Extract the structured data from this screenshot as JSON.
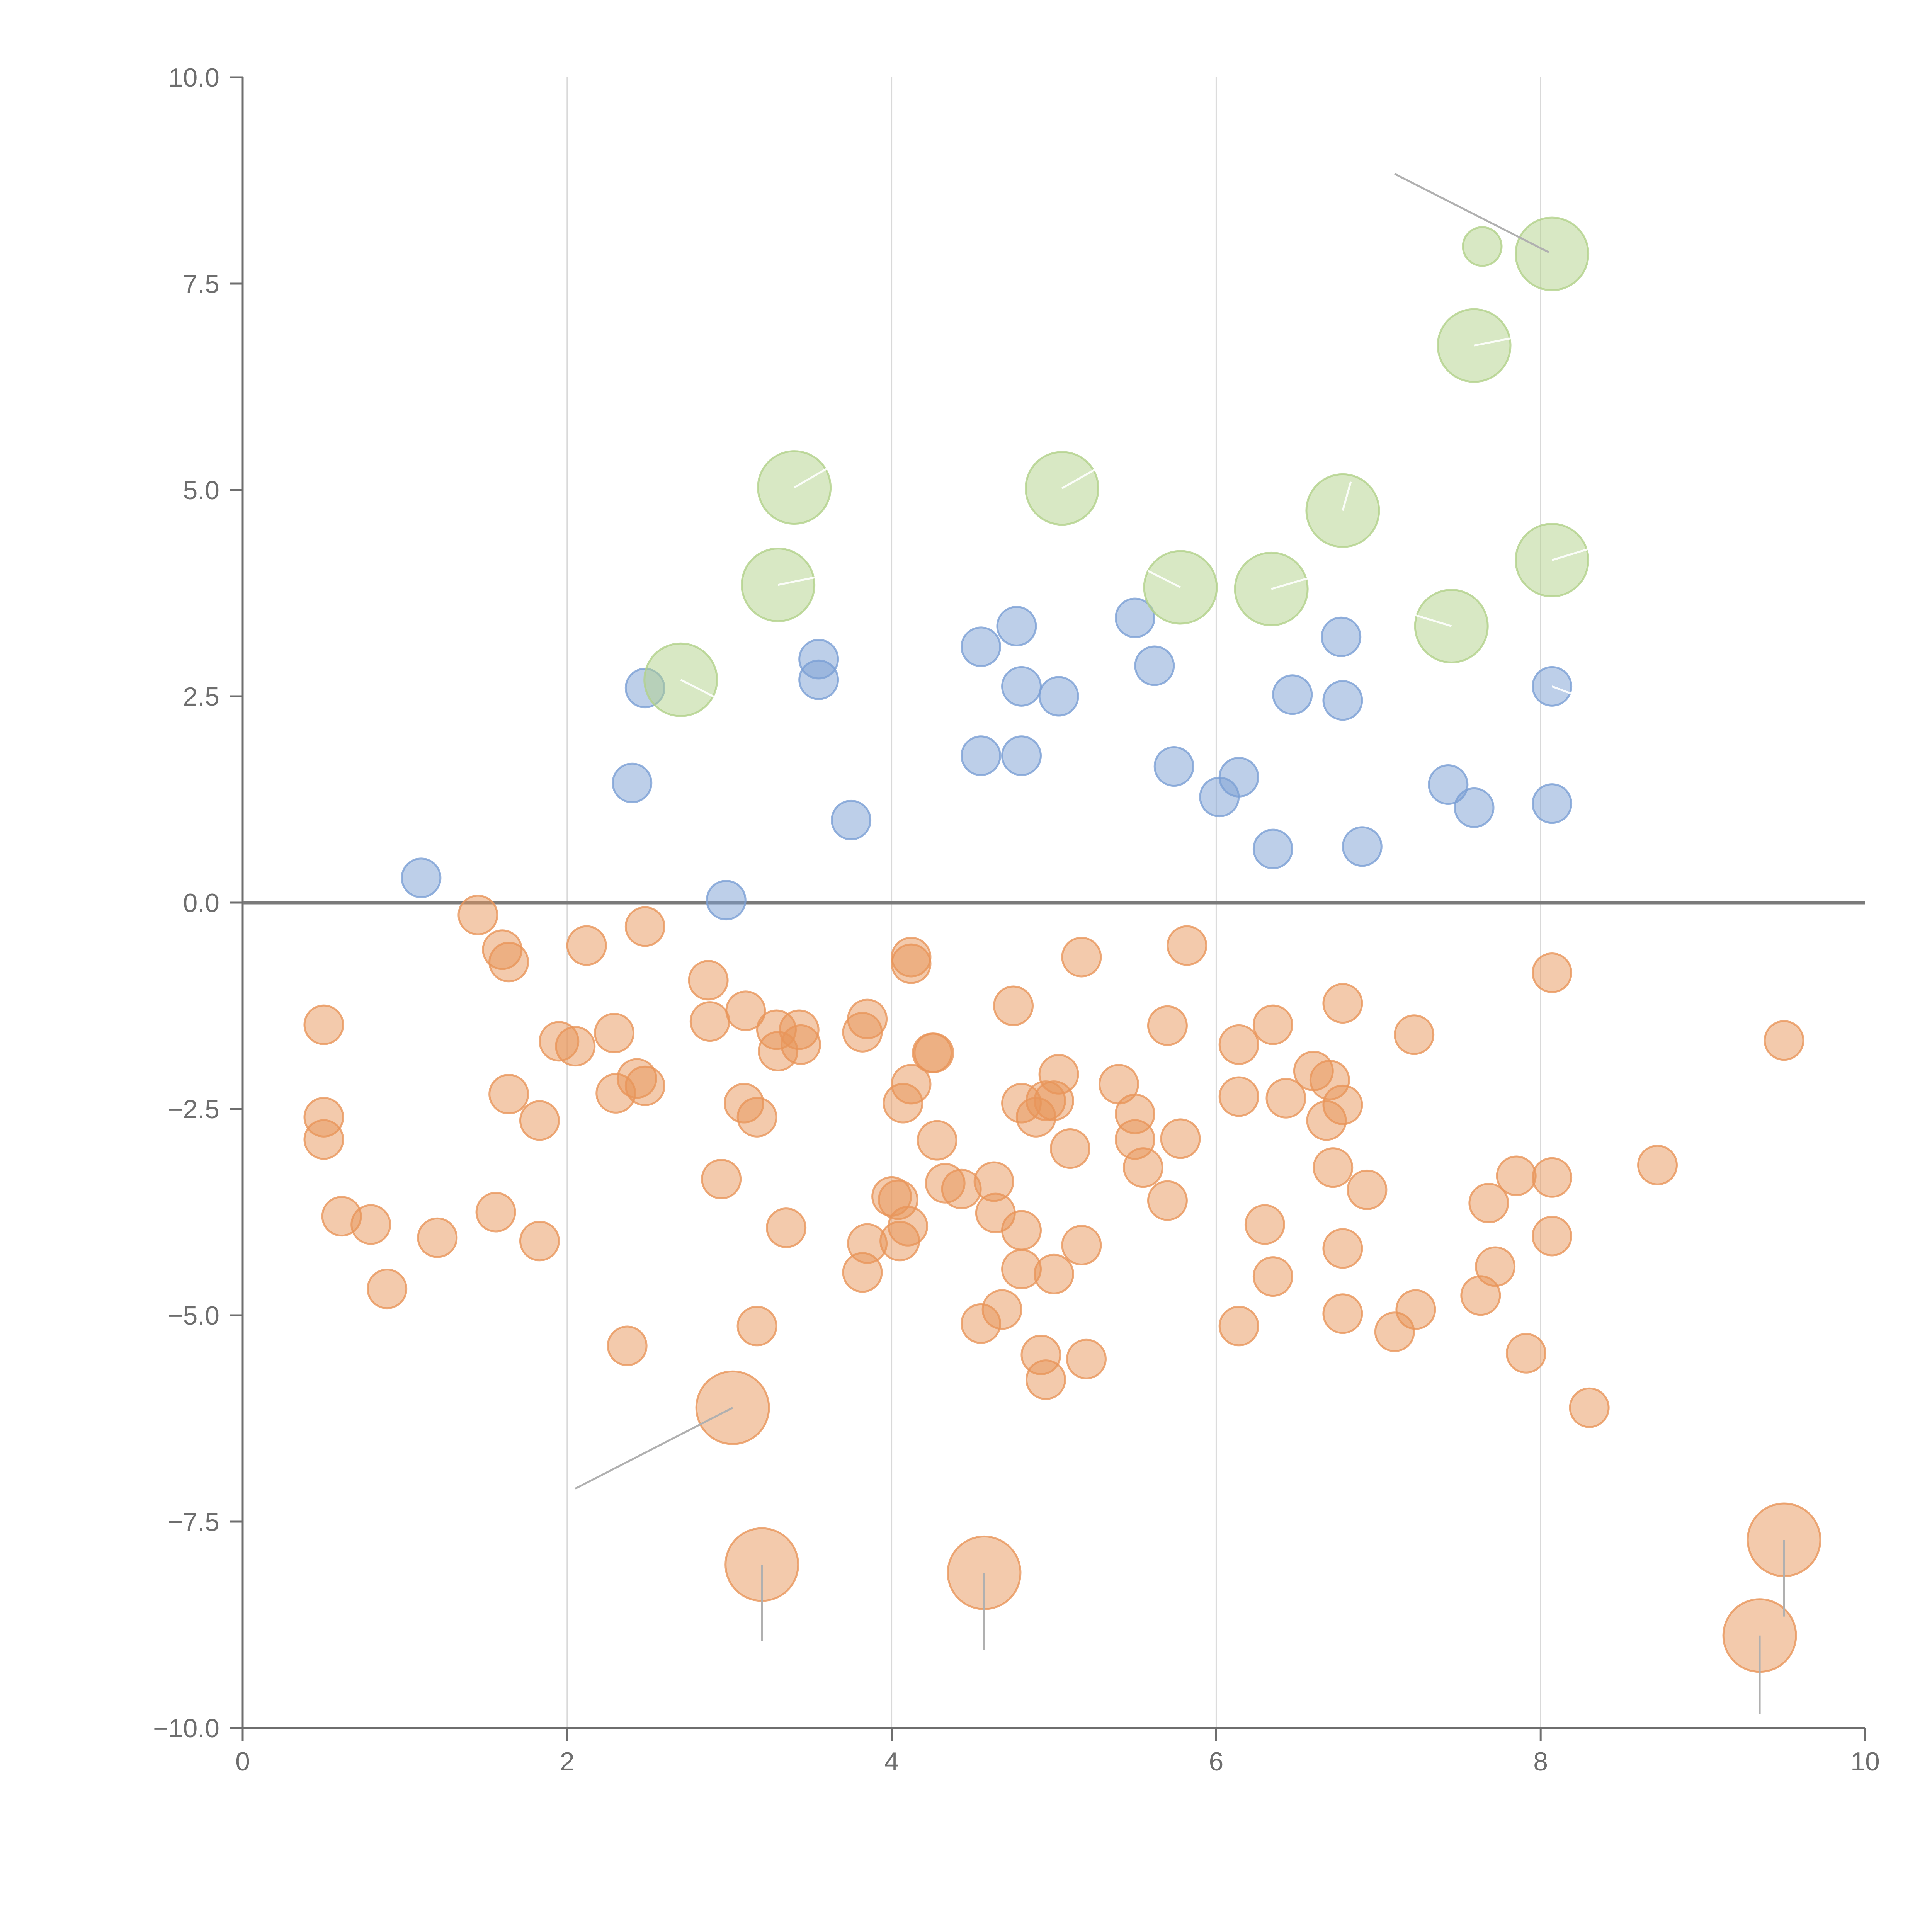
{
  "chart_data": {
    "type": "scatter",
    "title": "",
    "xlabel": "",
    "ylabel": "",
    "xlim": [
      0,
      10
    ],
    "ylim": [
      -10,
      10
    ],
    "x_ticks": [
      0,
      2,
      4,
      6,
      8,
      10
    ],
    "y_ticks": [
      -10,
      -7.5,
      -5,
      -2.5,
      0,
      2.5,
      5,
      7.5,
      10
    ],
    "x_tick_labels": [
      "0",
      "2",
      "4",
      "6",
      "8",
      "10"
    ],
    "y_tick_labels": [
      "−10.0",
      "−7.5",
      "−5.0",
      "−2.5",
      "0.0",
      "2.5",
      "5.0",
      "7.5",
      "10.0"
    ],
    "x_grid": true,
    "y_grid": false,
    "zero_line": 0,
    "colors": {
      "blue": "#7b9fd4",
      "orange": "#e8955a",
      "green": "#b1d18a",
      "axis": "#6e6e6e",
      "grid": "#d9d9d9",
      "zero_line": "#7a7a7a",
      "annotation_line": "#b0b0b0"
    },
    "series": [
      {
        "name": "blue",
        "color": "#7b9fd4",
        "size": 1,
        "points": [
          [
            1.1,
            0.3
          ],
          [
            2.4,
            1.45
          ],
          [
            2.48,
            2.6
          ],
          [
            2.98,
            0.03
          ],
          [
            3.55,
            2.95
          ],
          [
            3.55,
            2.7
          ],
          [
            3.75,
            1.0
          ],
          [
            4.55,
            3.1
          ],
          [
            4.55,
            1.78
          ],
          [
            4.77,
            3.35
          ],
          [
            4.8,
            2.62
          ],
          [
            4.8,
            1.78
          ],
          [
            5.03,
            2.5
          ],
          [
            5.5,
            3.45
          ],
          [
            5.62,
            2.87
          ],
          [
            5.74,
            1.65
          ],
          [
            6.02,
            1.28
          ],
          [
            6.14,
            1.52
          ],
          [
            6.35,
            0.65
          ],
          [
            6.47,
            2.52
          ],
          [
            6.77,
            3.22
          ],
          [
            6.78,
            2.45
          ],
          [
            6.9,
            0.68
          ],
          [
            7.43,
            1.43
          ],
          [
            7.59,
            1.15
          ],
          [
            8.07,
            2.62
          ],
          [
            8.07,
            1.2
          ]
        ]
      },
      {
        "name": "orange",
        "color": "#e8955a",
        "size": 1,
        "points": [
          [
            0.5,
            -1.48
          ],
          [
            0.5,
            -2.6
          ],
          [
            0.5,
            -2.87
          ],
          [
            0.61,
            -3.8
          ],
          [
            0.79,
            -3.9
          ],
          [
            0.89,
            -4.68
          ],
          [
            1.2,
            -4.06
          ],
          [
            1.45,
            -0.15
          ],
          [
            1.56,
            -3.75
          ],
          [
            1.6,
            -0.57
          ],
          [
            1.64,
            -0.72
          ],
          [
            1.64,
            -2.32
          ],
          [
            1.83,
            -2.64
          ],
          [
            1.83,
            -4.1
          ],
          [
            1.95,
            -1.68
          ],
          [
            2.05,
            -1.74
          ],
          [
            2.12,
            -0.52
          ],
          [
            2.29,
            -1.58
          ],
          [
            2.3,
            -2.31
          ],
          [
            2.37,
            -5.37
          ],
          [
            2.43,
            -2.13
          ],
          [
            2.48,
            -2.22
          ],
          [
            2.48,
            -0.29
          ],
          [
            2.87,
            -0.94
          ],
          [
            2.88,
            -1.44
          ],
          [
            2.95,
            -3.35
          ],
          [
            3.09,
            -2.43
          ],
          [
            3.1,
            -1.31
          ],
          [
            3.17,
            -2.6
          ],
          [
            3.17,
            -5.13
          ],
          [
            3.29,
            -1.54
          ],
          [
            3.3,
            -1.8
          ],
          [
            3.35,
            -3.94
          ],
          [
            3.43,
            -1.54
          ],
          [
            3.44,
            -1.72
          ],
          [
            3.82,
            -1.57
          ],
          [
            3.82,
            -4.48
          ],
          [
            3.85,
            -4.13
          ],
          [
            3.85,
            -1.41
          ],
          [
            4.0,
            -3.56
          ],
          [
            4.04,
            -3.6
          ],
          [
            4.05,
            -4.1
          ],
          [
            4.07,
            -2.43
          ],
          [
            4.1,
            -3.92
          ],
          [
            4.12,
            -0.66
          ],
          [
            4.12,
            -0.74
          ],
          [
            4.12,
            -2.2
          ],
          [
            4.25,
            -1.82
          ],
          [
            4.26,
            -1.82
          ],
          [
            4.28,
            -2.88
          ],
          [
            4.33,
            -3.4
          ],
          [
            4.43,
            -3.47
          ],
          [
            4.55,
            -5.1
          ],
          [
            4.63,
            -3.38
          ],
          [
            4.64,
            -3.76
          ],
          [
            4.68,
            -4.93
          ],
          [
            4.75,
            -1.25
          ],
          [
            4.8,
            -2.43
          ],
          [
            4.8,
            -3.97
          ],
          [
            4.8,
            -4.44
          ],
          [
            4.89,
            -2.6
          ],
          [
            4.92,
            -5.48
          ],
          [
            4.95,
            -5.78
          ],
          [
            4.95,
            -2.4
          ],
          [
            5.0,
            -2.4
          ],
          [
            5.0,
            -4.5
          ],
          [
            5.03,
            -2.08
          ],
          [
            5.1,
            -2.98
          ],
          [
            5.17,
            -0.66
          ],
          [
            5.17,
            -4.15
          ],
          [
            5.2,
            -5.53
          ],
          [
            5.4,
            -2.2
          ],
          [
            5.5,
            -2.56
          ],
          [
            5.5,
            -2.87
          ],
          [
            5.55,
            -3.21
          ],
          [
            5.7,
            -1.49
          ],
          [
            5.7,
            -3.61
          ],
          [
            5.78,
            -2.86
          ],
          [
            5.82,
            -0.52
          ],
          [
            6.14,
            -1.72
          ],
          [
            6.14,
            -2.35
          ],
          [
            6.14,
            -5.13
          ],
          [
            6.3,
            -3.9
          ],
          [
            6.35,
            -1.48
          ],
          [
            6.35,
            -4.53
          ],
          [
            6.43,
            -2.37
          ],
          [
            6.6,
            -2.04
          ],
          [
            6.68,
            -2.64
          ],
          [
            6.7,
            -2.15
          ],
          [
            6.72,
            -3.21
          ],
          [
            6.78,
            -4.19
          ],
          [
            6.78,
            -4.98
          ],
          [
            6.78,
            -2.45
          ],
          [
            6.78,
            -1.22
          ],
          [
            6.93,
            -3.48
          ],
          [
            7.1,
            -5.2
          ],
          [
            7.22,
            -1.6
          ],
          [
            7.23,
            -4.93
          ],
          [
            7.63,
            -4.76
          ],
          [
            7.68,
            -3.64
          ],
          [
            7.72,
            -4.41
          ],
          [
            7.85,
            -3.31
          ],
          [
            7.91,
            -5.46
          ],
          [
            8.07,
            -3.33
          ],
          [
            8.07,
            -4.04
          ],
          [
            8.07,
            -0.85
          ],
          [
            8.3,
            -6.12
          ],
          [
            8.72,
            -3.18
          ],
          [
            9.5,
            -1.67
          ]
        ]
      },
      {
        "name": "orange-large",
        "color": "#e8955a",
        "size": 2,
        "points": [
          [
            3.02,
            -6.12
          ],
          [
            3.2,
            -8.02
          ],
          [
            4.57,
            -8.12
          ],
          [
            9.5,
            -7.72
          ],
          [
            9.35,
            -8.88
          ]
        ]
      },
      {
        "name": "green",
        "color": "#b1d18a",
        "size": 2,
        "points": [
          [
            2.7,
            2.7
          ],
          [
            3.3,
            3.85
          ],
          [
            3.4,
            5.03
          ],
          [
            5.05,
            5.02
          ],
          [
            5.78,
            3.82
          ],
          [
            6.34,
            3.8
          ],
          [
            6.78,
            4.75
          ],
          [
            7.45,
            3.35
          ],
          [
            7.59,
            6.75
          ],
          [
            8.07,
            4.15
          ],
          [
            8.07,
            7.86
          ]
        ]
      },
      {
        "name": "green-small",
        "color": "#b1d18a",
        "size": 1,
        "points": [
          [
            7.64,
            7.95
          ]
        ]
      }
    ],
    "annotations": [
      {
        "from": [
          8.05,
          7.88
        ],
        "to": [
          7.1,
          8.83
        ],
        "color": "gray"
      },
      {
        "from": [
          3.02,
          -6.12
        ],
        "to": [
          2.05,
          -7.1
        ],
        "color": "gray"
      },
      {
        "from": [
          3.2,
          -8.02
        ],
        "to": [
          3.2,
          -8.95
        ],
        "color": "gray"
      },
      {
        "from": [
          4.57,
          -8.12
        ],
        "to": [
          4.57,
          -9.05
        ],
        "color": "gray"
      },
      {
        "from": [
          9.5,
          -7.72
        ],
        "to": [
          9.5,
          -8.65
        ],
        "color": "gray"
      },
      {
        "from": [
          9.35,
          -8.88
        ],
        "to": [
          9.35,
          -9.83
        ],
        "color": "gray"
      },
      {
        "from": [
          2.7,
          2.7
        ],
        "to": [
          2.95,
          2.45
        ],
        "color": "white"
      },
      {
        "from": [
          3.3,
          3.85
        ],
        "to": [
          3.55,
          3.95
        ],
        "color": "white"
      },
      {
        "from": [
          3.4,
          5.03
        ],
        "to": [
          3.62,
          5.28
        ],
        "color": "white"
      },
      {
        "from": [
          5.05,
          5.02
        ],
        "to": [
          5.3,
          5.3
        ],
        "color": "white"
      },
      {
        "from": [
          5.78,
          3.82
        ],
        "to": [
          5.58,
          4.02
        ],
        "color": "white"
      },
      {
        "from": [
          6.34,
          3.8
        ],
        "to": [
          6.6,
          3.95
        ],
        "color": "white"
      },
      {
        "from": [
          6.78,
          4.75
        ],
        "to": [
          6.83,
          5.1
        ],
        "color": "white"
      },
      {
        "from": [
          7.45,
          3.35
        ],
        "to": [
          7.2,
          3.5
        ],
        "color": "white"
      },
      {
        "from": [
          7.59,
          6.75
        ],
        "to": [
          7.85,
          6.85
        ],
        "color": "white"
      },
      {
        "from": [
          8.07,
          4.15
        ],
        "to": [
          8.32,
          4.3
        ],
        "color": "white"
      },
      {
        "from": [
          8.07,
          2.62
        ],
        "to": [
          8.3,
          2.45
        ],
        "color": "white"
      }
    ]
  }
}
